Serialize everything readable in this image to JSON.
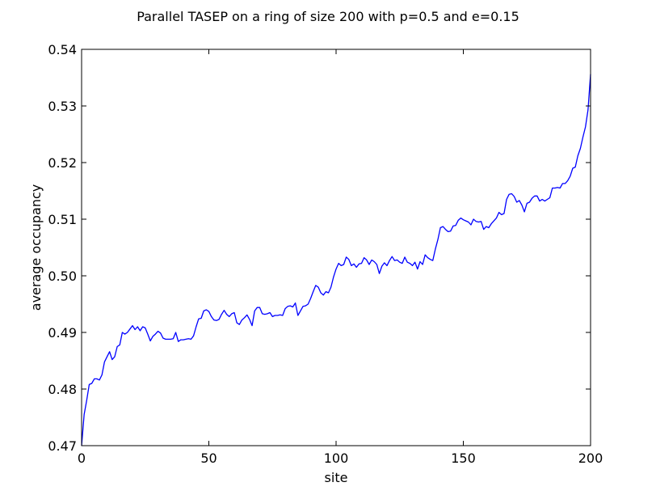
{
  "chart_data": {
    "type": "line",
    "title": "Parallel TASEP on a ring of size 200 with p=0.5 and e=0.15",
    "xlabel": "site",
    "ylabel": "average occupancy",
    "xlim": [
      0,
      200
    ],
    "ylim": [
      0.47,
      0.54
    ],
    "xticks": [
      0,
      50,
      100,
      150,
      200
    ],
    "xtick_labels": [
      "0",
      "50",
      "100",
      "150",
      "200"
    ],
    "yticks": [
      0.47,
      0.48,
      0.49,
      0.5,
      0.51,
      0.52,
      0.53,
      0.54
    ],
    "ytick_labels": [
      "0.47",
      "0.48",
      "0.49",
      "0.50",
      "0.51",
      "0.52",
      "0.53",
      "0.54"
    ],
    "grid": false,
    "line_color": "#0000ff",
    "series": [
      {
        "points": [
          [
            0,
            0.47
          ],
          [
            1,
            0.4755
          ],
          [
            2,
            0.478
          ],
          [
            3,
            0.4808
          ],
          [
            4,
            0.481
          ],
          [
            5,
            0.4818
          ],
          [
            6,
            0.4818
          ],
          [
            7,
            0.4816
          ],
          [
            8,
            0.4825
          ],
          [
            9,
            0.4848
          ],
          [
            10,
            0.4857
          ],
          [
            11,
            0.4866
          ],
          [
            12,
            0.4852
          ],
          [
            13,
            0.4857
          ],
          [
            14,
            0.4875
          ],
          [
            15,
            0.4878
          ],
          [
            16,
            0.49
          ],
          [
            17,
            0.4897
          ],
          [
            18,
            0.49
          ],
          [
            19,
            0.4906
          ],
          [
            20,
            0.4912
          ],
          [
            21,
            0.4905
          ],
          [
            22,
            0.491
          ],
          [
            23,
            0.4903
          ],
          [
            24,
            0.491
          ],
          [
            25,
            0.4908
          ],
          [
            26,
            0.4897
          ],
          [
            27,
            0.4885
          ],
          [
            28,
            0.4893
          ],
          [
            29,
            0.4897
          ],
          [
            30,
            0.4902
          ],
          [
            31,
            0.4899
          ],
          [
            32,
            0.489
          ],
          [
            33,
            0.4888
          ],
          [
            34,
            0.4888
          ],
          [
            35,
            0.4888
          ],
          [
            36,
            0.4889
          ],
          [
            37,
            0.49
          ],
          [
            38,
            0.4884
          ],
          [
            39,
            0.4887
          ],
          [
            40,
            0.4887
          ],
          [
            41,
            0.4888
          ],
          [
            42,
            0.4889
          ],
          [
            43,
            0.4888
          ],
          [
            44,
            0.4894
          ],
          [
            45,
            0.491
          ],
          [
            46,
            0.4924
          ],
          [
            47,
            0.4925
          ],
          [
            48,
            0.4938
          ],
          [
            49,
            0.494
          ],
          [
            50,
            0.4937
          ],
          [
            51,
            0.4928
          ],
          [
            52,
            0.4922
          ],
          [
            53,
            0.4921
          ],
          [
            54,
            0.4923
          ],
          [
            55,
            0.4932
          ],
          [
            56,
            0.4939
          ],
          [
            57,
            0.4932
          ],
          [
            58,
            0.4928
          ],
          [
            59,
            0.4933
          ],
          [
            60,
            0.4935
          ],
          [
            61,
            0.4917
          ],
          [
            62,
            0.4914
          ],
          [
            63,
            0.4922
          ],
          [
            64,
            0.4926
          ],
          [
            65,
            0.4931
          ],
          [
            66,
            0.4923
          ],
          [
            67,
            0.4912
          ],
          [
            68,
            0.4938
          ],
          [
            69,
            0.4944
          ],
          [
            70,
            0.4944
          ],
          [
            71,
            0.4933
          ],
          [
            72,
            0.4932
          ],
          [
            73,
            0.4933
          ],
          [
            74,
            0.4935
          ],
          [
            75,
            0.4928
          ],
          [
            76,
            0.493
          ],
          [
            77,
            0.493
          ],
          [
            78,
            0.4931
          ],
          [
            79,
            0.493
          ],
          [
            80,
            0.4942
          ],
          [
            81,
            0.4946
          ],
          [
            82,
            0.4947
          ],
          [
            83,
            0.4945
          ],
          [
            84,
            0.4952
          ],
          [
            85,
            0.493
          ],
          [
            86,
            0.4938
          ],
          [
            87,
            0.4946
          ],
          [
            88,
            0.4947
          ],
          [
            89,
            0.495
          ],
          [
            90,
            0.496
          ],
          [
            91,
            0.4972
          ],
          [
            92,
            0.4983
          ],
          [
            93,
            0.498
          ],
          [
            94,
            0.497
          ],
          [
            95,
            0.4966
          ],
          [
            96,
            0.4972
          ],
          [
            97,
            0.497
          ],
          [
            98,
            0.498
          ],
          [
            99,
            0.4998
          ],
          [
            100,
            0.5012
          ],
          [
            101,
            0.5022
          ],
          [
            102,
            0.5018
          ],
          [
            103,
            0.502
          ],
          [
            104,
            0.5033
          ],
          [
            105,
            0.5029
          ],
          [
            106,
            0.5018
          ],
          [
            107,
            0.5021
          ],
          [
            108,
            0.5015
          ],
          [
            109,
            0.5021
          ],
          [
            110,
            0.5022
          ],
          [
            111,
            0.5032
          ],
          [
            112,
            0.5028
          ],
          [
            113,
            0.502
          ],
          [
            114,
            0.5028
          ],
          [
            115,
            0.5025
          ],
          [
            116,
            0.502
          ],
          [
            117,
            0.5004
          ],
          [
            118,
            0.5017
          ],
          [
            119,
            0.5023
          ],
          [
            120,
            0.5018
          ],
          [
            121,
            0.5027
          ],
          [
            122,
            0.5034
          ],
          [
            123,
            0.5027
          ],
          [
            124,
            0.5028
          ],
          [
            125,
            0.5024
          ],
          [
            126,
            0.5022
          ],
          [
            127,
            0.5033
          ],
          [
            128,
            0.5024
          ],
          [
            129,
            0.5022
          ],
          [
            130,
            0.5018
          ],
          [
            131,
            0.5024
          ],
          [
            132,
            0.5012
          ],
          [
            133,
            0.5025
          ],
          [
            134,
            0.502
          ],
          [
            135,
            0.5037
          ],
          [
            136,
            0.5032
          ],
          [
            137,
            0.5029
          ],
          [
            138,
            0.5027
          ],
          [
            139,
            0.5047
          ],
          [
            140,
            0.5064
          ],
          [
            141,
            0.5085
          ],
          [
            142,
            0.5087
          ],
          [
            143,
            0.5082
          ],
          [
            144,
            0.5078
          ],
          [
            145,
            0.5079
          ],
          [
            146,
            0.5088
          ],
          [
            147,
            0.5089
          ],
          [
            148,
            0.5098
          ],
          [
            149,
            0.5102
          ],
          [
            150,
            0.5099
          ],
          [
            151,
            0.5097
          ],
          [
            152,
            0.5095
          ],
          [
            153,
            0.509
          ],
          [
            154,
            0.51
          ],
          [
            155,
            0.5096
          ],
          [
            156,
            0.5095
          ],
          [
            157,
            0.5096
          ],
          [
            158,
            0.5082
          ],
          [
            159,
            0.5087
          ],
          [
            160,
            0.5085
          ],
          [
            161,
            0.5092
          ],
          [
            162,
            0.5097
          ],
          [
            163,
            0.5102
          ],
          [
            164,
            0.5112
          ],
          [
            165,
            0.5108
          ],
          [
            166,
            0.511
          ],
          [
            167,
            0.5135
          ],
          [
            168,
            0.5144
          ],
          [
            169,
            0.5145
          ],
          [
            170,
            0.514
          ],
          [
            171,
            0.513
          ],
          [
            172,
            0.5133
          ],
          [
            173,
            0.5125
          ],
          [
            174,
            0.5113
          ],
          [
            175,
            0.5128
          ],
          [
            176,
            0.513
          ],
          [
            177,
            0.5137
          ],
          [
            178,
            0.5141
          ],
          [
            179,
            0.5141
          ],
          [
            180,
            0.5132
          ],
          [
            181,
            0.5135
          ],
          [
            182,
            0.5132
          ],
          [
            183,
            0.5135
          ],
          [
            184,
            0.5138
          ],
          [
            185,
            0.5155
          ],
          [
            186,
            0.5155
          ],
          [
            187,
            0.5156
          ],
          [
            188,
            0.5155
          ],
          [
            189,
            0.5163
          ],
          [
            190,
            0.5163
          ],
          [
            191,
            0.5168
          ],
          [
            192,
            0.5176
          ],
          [
            193,
            0.519
          ],
          [
            194,
            0.5192
          ],
          [
            195,
            0.5212
          ],
          [
            196,
            0.5225
          ],
          [
            197,
            0.5245
          ],
          [
            198,
            0.5263
          ],
          [
            199,
            0.5293
          ],
          [
            200,
            0.5356
          ]
        ]
      }
    ]
  }
}
